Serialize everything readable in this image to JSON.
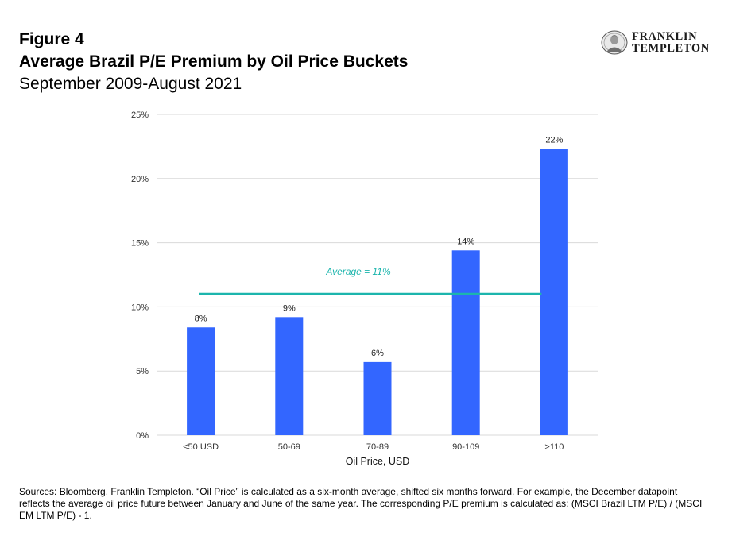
{
  "header": {
    "figure_label": "Figure 4",
    "title": "Average Brazil P/E Premium by Oil Price Buckets",
    "subtitle": "September 2009-August 2021"
  },
  "logo": {
    "line1": "FRANKLIN",
    "line2": "TEMPLETON"
  },
  "chart_data": {
    "type": "bar",
    "categories": [
      "<50 USD",
      "50-69",
      "70-89",
      "90-109",
      ">110"
    ],
    "values": [
      8.4,
      9.2,
      5.7,
      14.4,
      22.3
    ],
    "data_labels": [
      "8%",
      "9%",
      "6%",
      "14%",
      "22%"
    ],
    "xlabel": "Oil Price, USD",
    "ylabel": "",
    "ylim": [
      0,
      25
    ],
    "yticks": [
      0,
      5,
      10,
      15,
      20,
      25
    ],
    "ytick_labels": [
      "0%",
      "5%",
      "10%",
      "15%",
      "20%",
      "25%"
    ],
    "grid": true,
    "average_line": {
      "value": 11,
      "label": "Average = 11%"
    },
    "colors": {
      "bar": "#3366ff",
      "average": "#1cb5ad",
      "grid": "#d9d9d9"
    }
  },
  "footnote": "Sources: Bloomberg, Franklin Templeton. “Oil Price” is calculated as a six-month average, shifted six months forward. For example, the December datapoint reflects the average oil price future between January and June of the same year. The corresponding P/E premium is calculated as: (MSCI Brazil LTM P/E) / (MSCI EM LTM P/E) - 1."
}
